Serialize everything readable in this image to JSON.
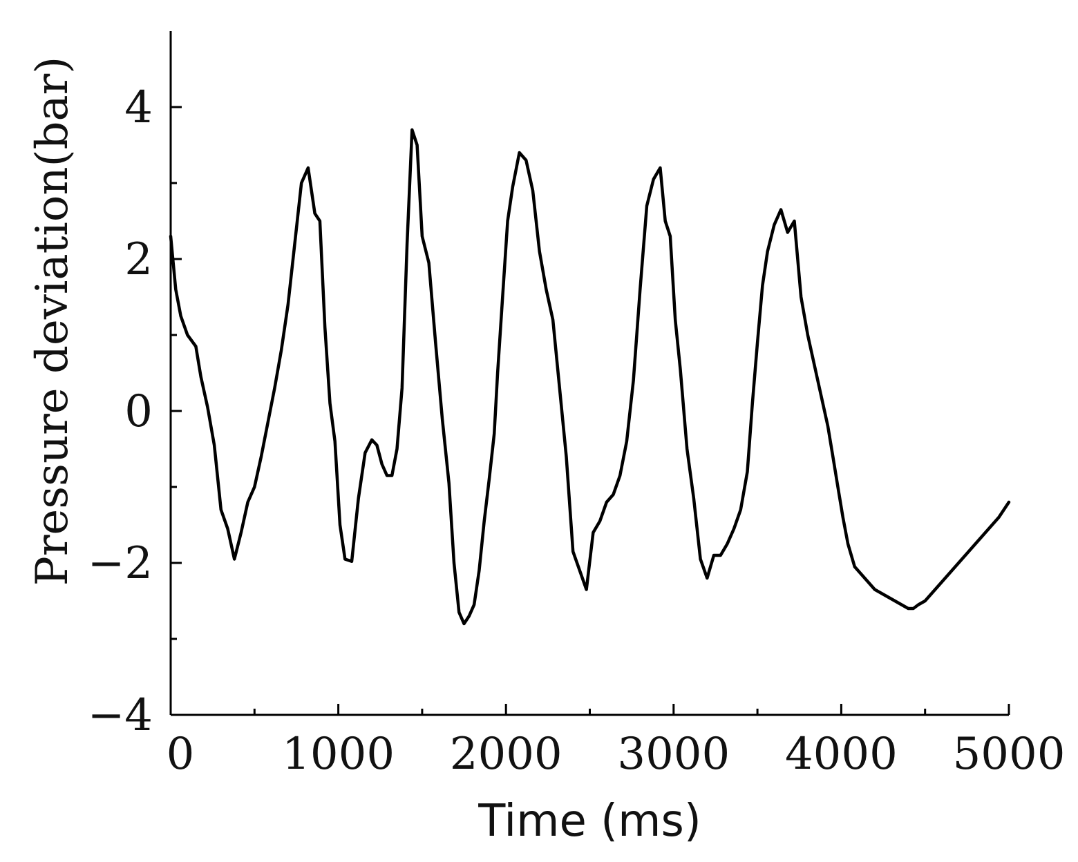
{
  "chart_data": {
    "type": "line",
    "title": "",
    "xlabel": "Time (ms)",
    "ylabel": "Pressure deviation(bar)",
    "xlim": [
      0,
      5000
    ],
    "ylim": [
      -4,
      5
    ],
    "x_ticks": [
      0,
      1000,
      2000,
      3000,
      4000,
      5000
    ],
    "x_tick_labels": [
      "0",
      "1000",
      "2000",
      "3000",
      "4000",
      "5000"
    ],
    "x_minor_ticks": [
      500,
      1500,
      2500,
      3500,
      4500
    ],
    "y_ticks": [
      -4,
      -2,
      0,
      2,
      4
    ],
    "y_tick_labels": [
      "−4",
      "−2",
      "0",
      "2",
      "4"
    ],
    "y_minor_ticks": [
      -3,
      -1,
      1,
      3
    ],
    "grid": false,
    "series": [
      {
        "x": [
          0,
          30,
          60,
          100,
          150,
          180,
          220,
          260,
          300,
          340,
          380,
          420,
          460,
          500,
          540,
          580,
          620,
          660,
          700,
          740,
          780,
          820,
          860,
          890,
          920,
          950,
          980,
          1010,
          1040,
          1080,
          1120,
          1160,
          1200,
          1230,
          1260,
          1290,
          1320,
          1350,
          1380,
          1410,
          1440,
          1470,
          1500,
          1540,
          1580,
          1620,
          1660,
          1690,
          1720,
          1750,
          1780,
          1810,
          1840,
          1870,
          1900,
          1930,
          1950,
          1980,
          2010,
          2040,
          2080,
          2120,
          2160,
          2200,
          2240,
          2280,
          2320,
          2360,
          2400,
          2440,
          2480,
          2520,
          2560,
          2600,
          2640,
          2680,
          2720,
          2760,
          2800,
          2840,
          2880,
          2920,
          2950,
          2980,
          3010,
          3040,
          3080,
          3120,
          3160,
          3200,
          3240,
          3280,
          3320,
          3360,
          3400,
          3440,
          3470,
          3500,
          3530,
          3560,
          3600,
          3640,
          3680,
          3720,
          3760,
          3800,
          3840,
          3880,
          3920,
          3950,
          3980,
          4010,
          4040,
          4080,
          4120,
          4160,
          4200,
          4240,
          4280,
          4320,
          4360,
          4400,
          4430,
          4460,
          4500,
          4540,
          4580,
          4620,
          4660,
          4700,
          4740,
          4780,
          4820,
          4860,
          4900,
          4940,
          4970,
          5000
        ],
        "y": [
          2.3,
          1.6,
          1.25,
          1.0,
          0.85,
          0.45,
          0.05,
          -0.45,
          -1.3,
          -1.55,
          -1.95,
          -1.6,
          -1.2,
          -1.0,
          -0.6,
          -0.15,
          0.3,
          0.8,
          1.4,
          2.2,
          3.0,
          3.2,
          2.6,
          2.5,
          1.1,
          0.1,
          -0.4,
          -1.5,
          -1.95,
          -1.98,
          -1.15,
          -0.55,
          -0.38,
          -0.45,
          -0.7,
          -0.85,
          -0.85,
          -0.5,
          0.3,
          2.2,
          3.7,
          3.5,
          2.3,
          1.95,
          0.9,
          -0.1,
          -0.95,
          -2.0,
          -2.65,
          -2.8,
          -2.7,
          -2.55,
          -2.1,
          -1.45,
          -0.9,
          -0.3,
          0.5,
          1.5,
          2.5,
          2.95,
          3.4,
          3.3,
          2.9,
          2.1,
          1.6,
          1.2,
          0.3,
          -0.6,
          -1.85,
          -2.1,
          -2.35,
          -1.6,
          -1.45,
          -1.2,
          -1.1,
          -0.85,
          -0.4,
          0.4,
          1.6,
          2.7,
          3.05,
          3.2,
          2.5,
          2.3,
          1.2,
          0.55,
          -0.5,
          -1.15,
          -1.95,
          -2.2,
          -1.9,
          -1.9,
          -1.75,
          -1.55,
          -1.3,
          -0.8,
          0.1,
          0.9,
          1.65,
          2.1,
          2.45,
          2.65,
          2.35,
          2.5,
          1.5,
          1.0,
          0.6,
          0.2,
          -0.2,
          -0.6,
          -1.0,
          -1.4,
          -1.75,
          -2.05,
          -2.15,
          -2.25,
          -2.35,
          -2.4,
          -2.45,
          -2.5,
          -2.55,
          -2.6,
          -2.6,
          -2.55,
          -2.5,
          -2.4,
          -2.3,
          -2.2,
          -2.1,
          -2.0,
          -1.9,
          -1.8,
          -1.7,
          -1.6,
          -1.5,
          -1.4,
          -1.3,
          -1.2
        ]
      }
    ]
  }
}
